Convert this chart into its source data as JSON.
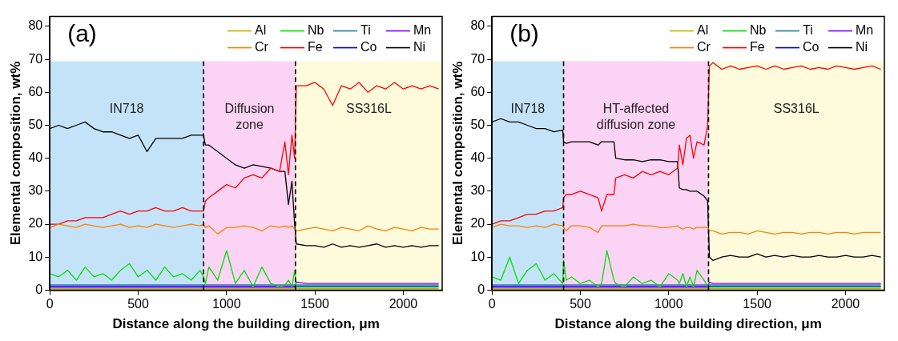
{
  "chart_data": [
    {
      "type": "line",
      "title": "(a)",
      "xlabel": "Distance along the building direction, μm",
      "ylabel": "Elemental composition, wt%",
      "xlim": [
        0,
        2220
      ],
      "xticks": [
        0,
        500,
        1000,
        1500,
        2000
      ],
      "ylim": [
        0,
        83
      ],
      "yticks": [
        0,
        10,
        20,
        30,
        40,
        50,
        60,
        70,
        80
      ],
      "legend": "top right",
      "x": [
        0,
        50,
        100,
        150,
        200,
        250,
        300,
        350,
        400,
        450,
        500,
        550,
        600,
        650,
        700,
        750,
        800,
        850,
        870,
        880,
        900,
        950,
        1000,
        1050,
        1100,
        1150,
        1200,
        1250,
        1300,
        1330,
        1350,
        1370,
        1385,
        1395,
        1450,
        1500,
        1550,
        1600,
        1650,
        1700,
        1750,
        1800,
        1850,
        1900,
        1950,
        2000,
        2050,
        2100,
        2150,
        2200
      ],
      "bands": [
        {
          "axis": "x",
          "from": 0,
          "to": 870,
          "label": "IN718",
          "color": "#c5e3f8"
        },
        {
          "axis": "x",
          "from": 870,
          "to": 1390,
          "label": "Diffusion zone",
          "color": "#fbd3f5"
        },
        {
          "axis": "x",
          "from": 1390,
          "to": 2220,
          "label": "SS316L",
          "color": "#fdfbdc"
        }
      ],
      "ref_lines": [
        {
          "axis": "x",
          "value": 870,
          "color": "#000000",
          "line_style": "dashed"
        },
        {
          "axis": "x",
          "value": 1390,
          "color": "#000000",
          "line_style": "dashed"
        }
      ],
      "series": [
        {
          "name": "Al",
          "color": "#c8b400",
          "values": [
            0.4,
            0.4,
            0.4,
            0.4,
            0.4,
            0.4,
            0.4,
            0.4,
            0.4,
            0.4,
            0.4,
            0.4,
            0.4,
            0.4,
            0.4,
            0.4,
            0.4,
            0.4,
            0.4,
            0.4,
            0.4,
            0.4,
            0.4,
            0.4,
            0.4,
            0.4,
            0.4,
            0.4,
            0.4,
            0.4,
            0.4,
            0.4,
            0.4,
            0.4,
            0.4,
            0.4,
            0.4,
            0.4,
            0.4,
            0.4,
            0.4,
            0.4,
            0.4,
            0.4,
            0.4,
            0.4,
            0.4,
            0.4,
            0.4,
            0.4
          ]
        },
        {
          "name": "Nb",
          "color": "#00e000",
          "values": [
            5,
            4,
            6,
            3,
            7,
            4,
            5,
            3,
            6,
            8,
            4,
            6,
            3,
            7,
            4,
            5,
            3,
            6,
            4,
            2,
            7,
            3,
            12,
            2,
            6,
            1,
            7,
            2,
            1,
            1.5,
            3,
            1,
            6,
            0.8,
            0.8,
            0.8,
            0.8,
            0.8,
            0.8,
            0.8,
            0.8,
            0.8,
            0.8,
            0.8,
            0.8,
            0.8,
            0.8,
            0.8,
            0.8,
            0.8
          ]
        },
        {
          "name": "Ti",
          "color": "#1f7f9f",
          "values": [
            1.6,
            1.6,
            1.6,
            1.6,
            1.6,
            1.6,
            1.6,
            1.6,
            1.6,
            1.6,
            1.6,
            1.6,
            1.6,
            1.6,
            1.6,
            1.6,
            1.6,
            1.6,
            1.6,
            1.6,
            1.6,
            1.6,
            1.6,
            1.6,
            1.6,
            1.6,
            1.6,
            1.6,
            1.6,
            1.6,
            1.6,
            1.6,
            1.6,
            1.6,
            1.6,
            1.6,
            1.6,
            1.6,
            1.6,
            1.6,
            1.6,
            1.6,
            1.6,
            1.6,
            1.6,
            1.6,
            1.6,
            1.6,
            1.6,
            1.6
          ]
        },
        {
          "name": "Mn",
          "color": "#8b00ff",
          "values": [
            0.8,
            0.8,
            0.8,
            0.8,
            0.8,
            0.8,
            0.8,
            0.8,
            0.8,
            0.8,
            0.8,
            0.8,
            0.8,
            0.8,
            0.8,
            0.8,
            0.8,
            0.8,
            0.8,
            0.8,
            0.8,
            0.8,
            0.8,
            0.8,
            0.8,
            0.8,
            0.8,
            0.8,
            0.8,
            0.8,
            0.8,
            0.8,
            0.8,
            2.4,
            2,
            2,
            2,
            2,
            2,
            2,
            2,
            2,
            2,
            2,
            2,
            2,
            2,
            2,
            2,
            2
          ]
        },
        {
          "name": "Cr",
          "color": "#ff8000",
          "values": [
            19,
            20,
            19.5,
            19,
            20,
            19.5,
            19,
            19.5,
            20,
            19,
            19.5,
            19,
            20,
            19.5,
            19,
            19.5,
            20,
            19.5,
            20,
            19,
            19.5,
            17,
            19,
            19,
            19.5,
            19,
            18,
            19.5,
            19,
            19.5,
            19,
            19.5,
            18.5,
            18,
            18.5,
            19,
            18.5,
            18,
            19,
            18.5,
            18,
            19.5,
            18.5,
            18,
            19,
            18.5,
            18,
            19,
            18.5,
            18.5
          ]
        },
        {
          "name": "Fe",
          "color": "#ff0000",
          "values": [
            20,
            20,
            21,
            21,
            22,
            22,
            22,
            23,
            24,
            23,
            24,
            24,
            25,
            24,
            24,
            25,
            24,
            24,
            24,
            27,
            28,
            30,
            32,
            31,
            34,
            35,
            34,
            37,
            36,
            45,
            35,
            47,
            40,
            62,
            62,
            63,
            61,
            56,
            62,
            61,
            63,
            60,
            62,
            61,
            63,
            61,
            62,
            61,
            62,
            61
          ]
        },
        {
          "name": "Co",
          "color": "#0000ff",
          "values": [
            1.2,
            1.2,
            1.2,
            1.2,
            1.2,
            1.2,
            1.2,
            1.2,
            1.2,
            1.2,
            1.2,
            1.2,
            1.2,
            1.2,
            1.2,
            1.2,
            1.2,
            1.2,
            1.2,
            1.2,
            1.2,
            1.2,
            1.2,
            1.2,
            1.2,
            1.2,
            1.2,
            1.2,
            1.2,
            1.2,
            1.2,
            1.2,
            1.2,
            1.2,
            1.2,
            1.2,
            1.2,
            1.2,
            1.2,
            1.2,
            1.2,
            1.2,
            1.2,
            1.2,
            1.2,
            1.2,
            1.2,
            1.2,
            1.2,
            1.2
          ]
        },
        {
          "name": "Ni",
          "color": "#000000",
          "values": [
            49,
            50,
            49,
            50,
            51,
            49,
            48,
            48,
            47,
            46,
            47,
            42,
            46,
            46,
            46,
            46,
            47,
            47,
            47,
            44,
            44,
            42,
            40,
            38,
            37,
            38,
            37.5,
            37,
            36,
            36,
            26,
            33,
            20,
            14,
            13.5,
            13.5,
            13,
            14,
            13,
            13.5,
            13,
            13.5,
            14,
            13,
            13.5,
            13,
            13.5,
            13,
            13.5,
            13.5
          ]
        }
      ]
    },
    {
      "type": "line",
      "title": "(b)",
      "xlabel": "Distance along the building direction, μm",
      "ylabel": "Elemental composition, wt%",
      "xlim": [
        0,
        2220
      ],
      "xticks": [
        0,
        500,
        1000,
        1500,
        2000
      ],
      "ylim": [
        0,
        83
      ],
      "yticks": [
        0,
        10,
        20,
        30,
        40,
        50,
        60,
        70,
        80
      ],
      "legend": "top right",
      "x": [
        0,
        50,
        100,
        150,
        200,
        250,
        300,
        350,
        400,
        405,
        420,
        450,
        500,
        550,
        600,
        620,
        650,
        690,
        700,
        750,
        800,
        850,
        900,
        950,
        1000,
        1050,
        1060,
        1080,
        1100,
        1120,
        1140,
        1160,
        1200,
        1220,
        1230,
        1250,
        1300,
        1350,
        1400,
        1450,
        1500,
        1550,
        1600,
        1650,
        1700,
        1750,
        1800,
        1850,
        1900,
        1950,
        2000,
        2050,
        2100,
        2150,
        2200
      ],
      "bands": [
        {
          "axis": "x",
          "from": 0,
          "to": 405,
          "label": "IN718",
          "color": "#c5e3f8"
        },
        {
          "axis": "x",
          "from": 405,
          "to": 1225,
          "label": "HT-affected diffusion zone",
          "color": "#fbd3f5"
        },
        {
          "axis": "x",
          "from": 1225,
          "to": 2220,
          "label": "SS316L",
          "color": "#fdfbdc"
        }
      ],
      "ref_lines": [
        {
          "axis": "x",
          "value": 405,
          "color": "#000000",
          "line_style": "dashed"
        },
        {
          "axis": "x",
          "value": 1225,
          "color": "#000000",
          "line_style": "dashed"
        }
      ],
      "series": [
        {
          "name": "Al",
          "color": "#c8b400",
          "values": [
            0.4,
            0.4,
            0.4,
            0.4,
            0.4,
            0.4,
            0.4,
            0.4,
            0.4,
            0.4,
            0.4,
            0.4,
            0.4,
            0.4,
            0.4,
            0.4,
            0.4,
            0.4,
            0.4,
            0.4,
            0.4,
            0.4,
            0.4,
            0.4,
            0.4,
            0.4,
            0.4,
            0.4,
            0.4,
            0.4,
            0.4,
            0.4,
            0.4,
            0.4,
            0.4,
            0.4,
            0.4,
            0.4,
            0.4,
            0.4,
            0.4,
            0.4,
            0.4,
            0.4,
            0.4,
            0.4,
            0.4,
            0.4,
            0.4,
            0.4,
            0.4,
            0.4,
            0.4,
            0.4,
            0.4
          ]
        },
        {
          "name": "Nb",
          "color": "#00e000",
          "values": [
            4,
            3,
            10,
            2,
            6,
            8,
            3,
            5,
            2,
            9,
            3,
            4,
            2,
            3,
            1,
            2,
            12,
            3,
            2,
            1,
            4,
            2,
            3,
            1,
            5,
            3,
            2,
            5,
            1,
            4,
            1,
            6,
            3,
            1,
            0.8,
            0.8,
            0.8,
            0.8,
            0.8,
            0.8,
            0.8,
            0.8,
            0.8,
            0.8,
            0.8,
            0.8,
            0.8,
            0.8,
            0.8,
            0.8,
            0.8,
            0.8,
            0.8,
            0.8,
            0.8
          ]
        },
        {
          "name": "Ti",
          "color": "#1f7f9f",
          "values": [
            1.6,
            1.6,
            1.6,
            1.6,
            1.6,
            1.6,
            1.6,
            1.6,
            1.6,
            1.6,
            1.6,
            1.6,
            1.6,
            1.6,
            1.6,
            1.6,
            1.6,
            1.6,
            1.6,
            1.6,
            1.6,
            1.6,
            1.6,
            1.6,
            1.6,
            1.6,
            1.6,
            1.6,
            1.6,
            1.6,
            1.6,
            1.6,
            1.6,
            1.6,
            1.6,
            1.6,
            1.6,
            1.6,
            1.6,
            1.6,
            1.6,
            1.6,
            1.6,
            1.6,
            1.6,
            1.6,
            1.6,
            1.6,
            1.6,
            1.6,
            1.6,
            1.6,
            1.6,
            1.6,
            1.6
          ]
        },
        {
          "name": "Mn",
          "color": "#8b00ff",
          "values": [
            0.8,
            0.8,
            0.8,
            0.8,
            0.8,
            0.8,
            0.8,
            0.8,
            0.8,
            0.8,
            0.8,
            0.8,
            0.8,
            0.8,
            0.8,
            0.8,
            0.8,
            0.8,
            0.8,
            0.8,
            0.8,
            0.8,
            0.8,
            0.8,
            0.8,
            0.8,
            0.8,
            0.8,
            0.8,
            0.8,
            0.8,
            0.8,
            0.8,
            0.8,
            2.4,
            2,
            2,
            2,
            2,
            2,
            2,
            2,
            2,
            2,
            2,
            2,
            2,
            2,
            2,
            2,
            2,
            2,
            2,
            2,
            2
          ]
        },
        {
          "name": "Cr",
          "color": "#ff8000",
          "values": [
            19,
            20,
            19.5,
            19.5,
            19,
            19.5,
            19,
            20,
            19.5,
            19,
            18,
            19.5,
            19.5,
            19,
            17.5,
            19.5,
            19.5,
            19.5,
            19.5,
            19.5,
            20,
            19.5,
            19.5,
            19,
            19,
            19.5,
            19,
            18.5,
            19,
            19,
            18.5,
            19,
            19,
            19,
            18,
            18,
            17,
            17.5,
            17.5,
            17,
            18,
            17.5,
            17,
            17.5,
            17.5,
            17,
            17.5,
            17.5,
            17,
            17.5,
            17.5,
            17,
            17.5,
            17.5,
            17.5
          ]
        },
        {
          "name": "Fe",
          "color": "#ff0000",
          "values": [
            20,
            21,
            21,
            22,
            23,
            23,
            24,
            24,
            25,
            28,
            29,
            29,
            30,
            29,
            28,
            24,
            29,
            29,
            34,
            35,
            34,
            36,
            35,
            36,
            35,
            37,
            44,
            38,
            46,
            47,
            40,
            45,
            44,
            50,
            68,
            69,
            67,
            68,
            67,
            67.5,
            68,
            67,
            68,
            67,
            67.5,
            68,
            67,
            67.5,
            67,
            68,
            67.5,
            67,
            67.5,
            68,
            67
          ]
        },
        {
          "name": "Co",
          "color": "#0000ff",
          "values": [
            1.2,
            1.2,
            1.2,
            1.2,
            1.2,
            1.2,
            1.2,
            1.2,
            1.2,
            1.2,
            1.2,
            1.2,
            1.2,
            1.2,
            1.2,
            1.2,
            1.2,
            1.2,
            1.2,
            1.2,
            1.2,
            1.2,
            1.2,
            1.2,
            1.2,
            1.2,
            1.2,
            1.2,
            1.2,
            1.2,
            1.2,
            1.2,
            1.2,
            1.2,
            1.2,
            1.2,
            1.2,
            1.2,
            1.2,
            1.2,
            1.2,
            1.2,
            1.2,
            1.2,
            1.2,
            1.2,
            1.2,
            1.2,
            1.2,
            1.2,
            1.2,
            1.2,
            1.2,
            1.2,
            1.2
          ]
        },
        {
          "name": "Ni",
          "color": "#000000",
          "values": [
            51,
            52,
            51,
            51,
            50,
            49,
            49,
            48,
            48.5,
            45,
            44.5,
            45,
            45,
            45,
            44,
            45,
            45,
            45,
            40,
            39.5,
            39.5,
            39,
            39.5,
            39.5,
            39,
            39,
            31,
            30.5,
            30.5,
            30,
            30,
            30,
            28.5,
            27,
            10,
            9,
            10,
            10.5,
            10,
            10,
            11,
            10,
            10.5,
            10,
            10.5,
            10,
            10,
            10.5,
            10,
            10,
            10.5,
            10,
            10,
            10.5,
            10
          ]
        }
      ]
    }
  ]
}
